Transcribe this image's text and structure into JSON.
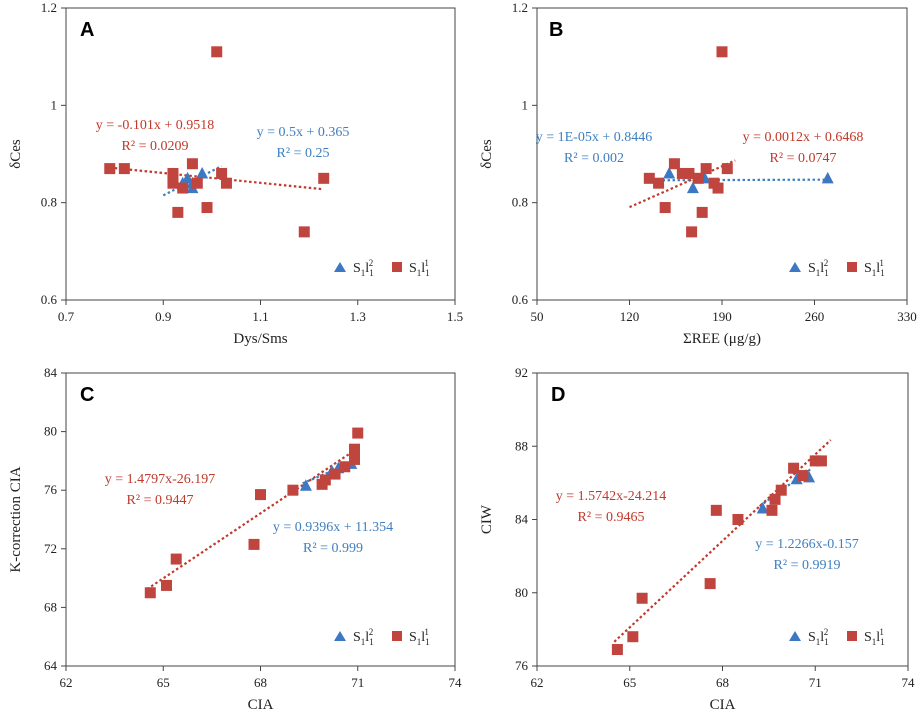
{
  "colors": {
    "red": "#c0392b",
    "blue": "#3f7fc0",
    "redMarker": "#c0453f",
    "blueMarker": "#3c78c3",
    "axis": "#444444"
  },
  "chart_data": [
    {
      "panel": "A",
      "type": "scatter",
      "xlabel": "Dys/Sms",
      "ylabel": "δCes",
      "xlim": [
        0.7,
        1.5
      ],
      "ylim": [
        0.6,
        1.2
      ],
      "xticks": [
        "0.7",
        "0.9",
        "1.1",
        "1.3",
        "1.5"
      ],
      "yticks": [
        "0.6",
        "0.8",
        "1",
        "1.2"
      ],
      "legend": [
        "S1l1 2",
        "S1l1 1"
      ],
      "series": [
        {
          "name": "S1l1 2",
          "marker": "triangle",
          "color": "blue",
          "points": [
            [
              0.95,
              0.85
            ],
            [
              0.96,
              0.83
            ],
            [
              0.98,
              0.86
            ],
            [
              0.96,
              0.84
            ],
            [
              0.94,
              0.84
            ]
          ],
          "trend": {
            "x": [
              0.9,
              1.02
            ],
            "slope": 0.5,
            "intercept": 0.365,
            "eq": "y = 0.5x + 0.365",
            "r2": "R² = 0.25"
          }
        },
        {
          "name": "S1l1 1",
          "marker": "square",
          "color": "red",
          "points": [
            [
              0.79,
              0.87
            ],
            [
              0.82,
              0.87
            ],
            [
              0.92,
              0.86
            ],
            [
              0.92,
              0.84
            ],
            [
              0.92,
              0.85
            ],
            [
              0.93,
              0.78
            ],
            [
              0.94,
              0.83
            ],
            [
              0.96,
              0.88
            ],
            [
              0.97,
              0.84
            ],
            [
              0.99,
              0.79
            ],
            [
              1.01,
              1.11
            ],
            [
              1.02,
              0.86
            ],
            [
              1.03,
              0.84
            ],
            [
              1.19,
              0.74
            ],
            [
              1.23,
              0.85
            ]
          ],
          "trend": {
            "x": [
              0.79,
              1.23
            ],
            "slope": -0.101,
            "intercept": 0.9518,
            "eq": "y = -0.101x + 0.9518",
            "r2": "R² = 0.0209"
          }
        }
      ]
    },
    {
      "panel": "B",
      "type": "scatter",
      "xlabel": "ΣREE (μg/g)",
      "ylabel": "δCes",
      "xlim": [
        50,
        330
      ],
      "ylim": [
        0.6,
        1.2
      ],
      "xticks": [
        "50",
        "120",
        "190",
        "260",
        "330"
      ],
      "yticks": [
        "0.6",
        "0.8",
        "1",
        "1.2"
      ],
      "legend": [
        "S1l1 2",
        "S1l1 1"
      ],
      "series": [
        {
          "name": "S1l1 2",
          "marker": "triangle",
          "color": "blue",
          "points": [
            [
              150,
              0.86
            ],
            [
              168,
              0.83
            ],
            [
              177,
              0.85
            ],
            [
              270,
              0.85
            ]
          ],
          "trend": {
            "x": [
              145,
              270
            ],
            "slope": 1e-05,
            "intercept": 0.8446,
            "eq": "y = 1E-05x + 0.8446",
            "r2": "R² = 0.002"
          }
        },
        {
          "name": "S1l1 1",
          "marker": "square",
          "color": "red",
          "points": [
            [
              135,
              0.85
            ],
            [
              142,
              0.84
            ],
            [
              147,
              0.79
            ],
            [
              154,
              0.88
            ],
            [
              160,
              0.86
            ],
            [
              165,
              0.86
            ],
            [
              167,
              0.74
            ],
            [
              172,
              0.85
            ],
            [
              175,
              0.78
            ],
            [
              178,
              0.87
            ],
            [
              184,
              0.84
            ],
            [
              187,
              0.83
            ],
            [
              190,
              1.11
            ],
            [
              194,
              0.87
            ]
          ],
          "trend": {
            "x": [
              120,
              200
            ],
            "slope": 0.0012,
            "intercept": 0.6468,
            "eq": "y = 0.0012x + 0.6468",
            "r2": "R² = 0.0747"
          }
        }
      ]
    },
    {
      "panel": "C",
      "type": "scatter",
      "xlabel": "CIA",
      "ylabel": "K-correction CIA",
      "xlim": [
        62,
        74
      ],
      "ylim": [
        64,
        84
      ],
      "xticks": [
        "62",
        "65",
        "68",
        "71",
        "74"
      ],
      "yticks": [
        "64",
        "68",
        "72",
        "76",
        "80",
        "84"
      ],
      "legend": [
        "S1l1 2",
        "S1l1 1"
      ],
      "series": [
        {
          "name": "S1l1 2",
          "marker": "triangle",
          "color": "blue",
          "points": [
            [
              69.4,
              76.3
            ],
            [
              70.2,
              77.3
            ],
            [
              70.4,
              77.5
            ],
            [
              70.8,
              77.8
            ]
          ],
          "trend": {
            "x": [
              69.3,
              70.9
            ],
            "slope": 0.9396,
            "intercept": 11.354,
            "eq": "y = 0.9396x + 11.354",
            "r2": "R² = 0.999"
          }
        },
        {
          "name": "S1l1 1",
          "marker": "square",
          "color": "red",
          "points": [
            [
              64.6,
              69.0
            ],
            [
              65.1,
              69.5
            ],
            [
              65.4,
              71.3
            ],
            [
              67.8,
              72.3
            ],
            [
              68.0,
              75.7
            ],
            [
              69.0,
              76.0
            ],
            [
              69.9,
              76.4
            ],
            [
              70.0,
              76.7
            ],
            [
              70.3,
              77.1
            ],
            [
              70.6,
              77.6
            ],
            [
              70.9,
              78.1
            ],
            [
              70.9,
              78.8
            ],
            [
              71.0,
              79.9
            ]
          ],
          "trend": {
            "x": [
              64.5,
              71.0
            ],
            "slope": 1.4797,
            "intercept": -26.197,
            "eq": "y = 1.4797x-26.197",
            "r2": "R² = 0.9447"
          }
        }
      ]
    },
    {
      "panel": "D",
      "type": "scatter",
      "xlabel": "CIA",
      "ylabel": "CIW",
      "xlim": [
        62,
        74
      ],
      "ylim": [
        76,
        92
      ],
      "xticks": [
        "62",
        "65",
        "68",
        "71",
        "74"
      ],
      "yticks": [
        "76",
        "80",
        "84",
        "88",
        "92"
      ],
      "legend": [
        "S1l1 2",
        "S1l1 1"
      ],
      "series": [
        {
          "name": "S1l1 2",
          "marker": "triangle",
          "color": "blue",
          "points": [
            [
              69.3,
              84.6
            ],
            [
              70.4,
              86.2
            ],
            [
              70.7,
              86.4
            ],
            [
              70.8,
              86.3
            ]
          ],
          "trend": {
            "x": [
              69.2,
              70.9
            ],
            "slope": 1.2266,
            "intercept": -0.157,
            "eq": "y = 1.2266x-0.157",
            "r2": "R² = 0.9919"
          }
        },
        {
          "name": "S1l1 1",
          "marker": "square",
          "color": "red",
          "points": [
            [
              64.6,
              76.9
            ],
            [
              65.1,
              77.6
            ],
            [
              65.4,
              79.7
            ],
            [
              67.6,
              80.5
            ],
            [
              67.8,
              84.5
            ],
            [
              68.5,
              84.0
            ],
            [
              69.6,
              84.5
            ],
            [
              69.7,
              85.1
            ],
            [
              69.9,
              85.6
            ],
            [
              70.3,
              86.8
            ],
            [
              70.6,
              86.4
            ],
            [
              71.0,
              87.2
            ],
            [
              71.2,
              87.2
            ]
          ],
          "trend": {
            "x": [
              64.5,
              71.5
            ],
            "slope": 1.5742,
            "intercept": -24.214,
            "eq": "y = 1.5742x-24.214",
            "r2": "R² = 0.9465"
          }
        }
      ]
    }
  ]
}
